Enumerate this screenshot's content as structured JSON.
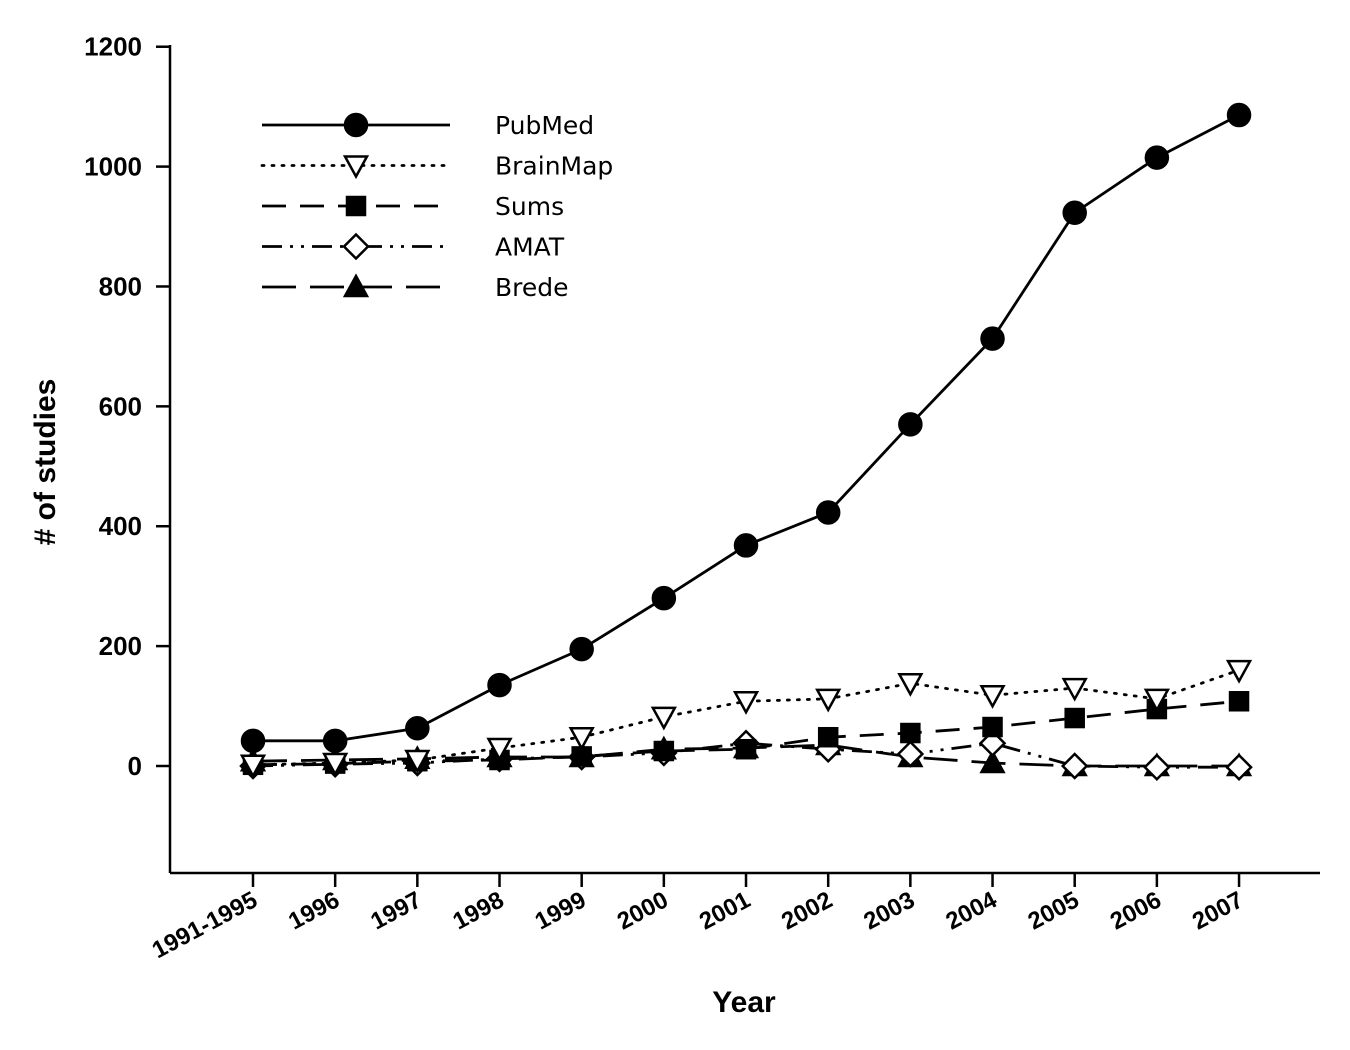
{
  "chart_data": {
    "type": "line",
    "title": "",
    "xlabel": "Year",
    "ylabel": "# of studies",
    "ylim": [
      -180,
      1200
    ],
    "yticks": [
      0,
      200,
      400,
      600,
      800,
      1000,
      1200
    ],
    "grid": false,
    "legend_position": "top-left",
    "categories": [
      "1991-1995",
      "1996",
      "1997",
      "1998",
      "1999",
      "2000",
      "2001",
      "2002",
      "2003",
      "2004",
      "2005",
      "2006",
      "2007"
    ],
    "series": [
      {
        "name": "PubMed",
        "line": "solid",
        "marker": "circle-filled",
        "values": [
          42,
          42,
          63,
          135,
          195,
          280,
          368,
          423,
          570,
          713,
          923,
          1015,
          1086
        ]
      },
      {
        "name": "BrainMap",
        "line": "dotted",
        "marker": "triangle-down-open",
        "values": [
          2,
          5,
          10,
          30,
          48,
          82,
          108,
          112,
          138,
          118,
          130,
          112,
          160
        ]
      },
      {
        "name": "Sums",
        "line": "dashed",
        "marker": "square-filled",
        "values": [
          2,
          4,
          8,
          10,
          16,
          25,
          28,
          48,
          55,
          65,
          80,
          95,
          108
        ]
      },
      {
        "name": "AMAT",
        "line": "dash-dot-dot",
        "marker": "diamond-open",
        "values": [
          0,
          3,
          5,
          12,
          15,
          22,
          38,
          28,
          20,
          38,
          0,
          -2,
          -2
        ]
      },
      {
        "name": "Brede",
        "line": "long-dash",
        "marker": "triangle-up-filled",
        "values": [
          8,
          10,
          12,
          15,
          15,
          28,
          30,
          35,
          15,
          5,
          0,
          0,
          0
        ]
      }
    ]
  }
}
